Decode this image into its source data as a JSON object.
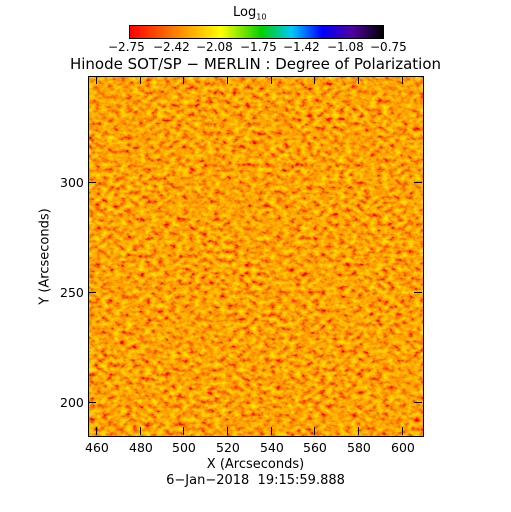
{
  "colorbar": {
    "label_main": "Log",
    "label_sub": "10",
    "tick_labels": [
      "−2.75",
      "−2.42",
      "−2.08",
      "−1.75",
      "−1.42",
      "−1.08",
      "−0.75"
    ],
    "range": [
      -2.75,
      -0.75
    ],
    "colormap": [
      "#ff0000",
      "#ff8c00",
      "#ffff00",
      "#00e000",
      "#00c0ff",
      "#0000ff",
      "#5a00a0",
      "#000000"
    ]
  },
  "title": "Hinode SOT/SP − MERLIN : Degree of Polarization",
  "axes": {
    "xlabel": "X (Arcseconds)",
    "ylabel": "Y (Arcseconds)",
    "xticks": [
      "460",
      "480",
      "500",
      "520",
      "540",
      "560",
      "580",
      "600"
    ],
    "yticks": [
      "200",
      "250",
      "300"
    ],
    "xlim": [
      456,
      609
    ],
    "ylim": [
      185,
      350
    ]
  },
  "timestamp": "6−Jan−2018  19:15:59.888",
  "image": {
    "description_colors": {
      "background": "#f4501c",
      "bright": "#ffd000",
      "active": "#00ee88",
      "strong": "#1040ff"
    }
  }
}
